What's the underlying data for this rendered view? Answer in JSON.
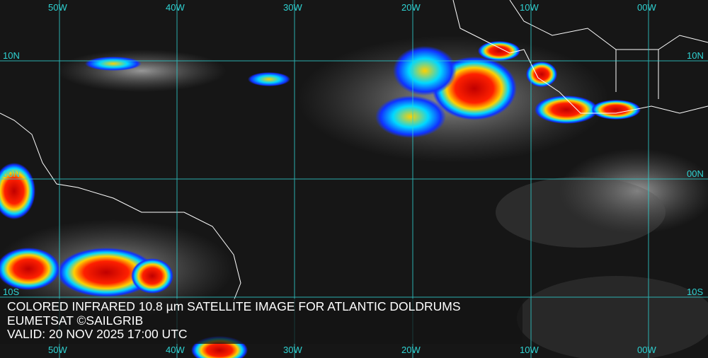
{
  "map": {
    "longitude_labels": [
      "50W",
      "40W",
      "30W",
      "20W",
      "10W",
      "00W"
    ],
    "latitude_labels": [
      "10N",
      "00N",
      "10S"
    ],
    "colors": {
      "grid": "#2fd3d3",
      "coast": "#ffffff",
      "cold_cloud_tops": [
        "#ff0000",
        "#ffd000",
        "#00e0ff",
        "#1030ff"
      ]
    }
  },
  "caption": {
    "title": "COLORED INFRARED 10.8 µm SATELLITE IMAGE FOR ATLANTIC DOLDRUMS",
    "source": "EUMETSAT ©SAILGRIB",
    "valid": "VALID:  20 NOV 2025 17:00 UTC"
  }
}
